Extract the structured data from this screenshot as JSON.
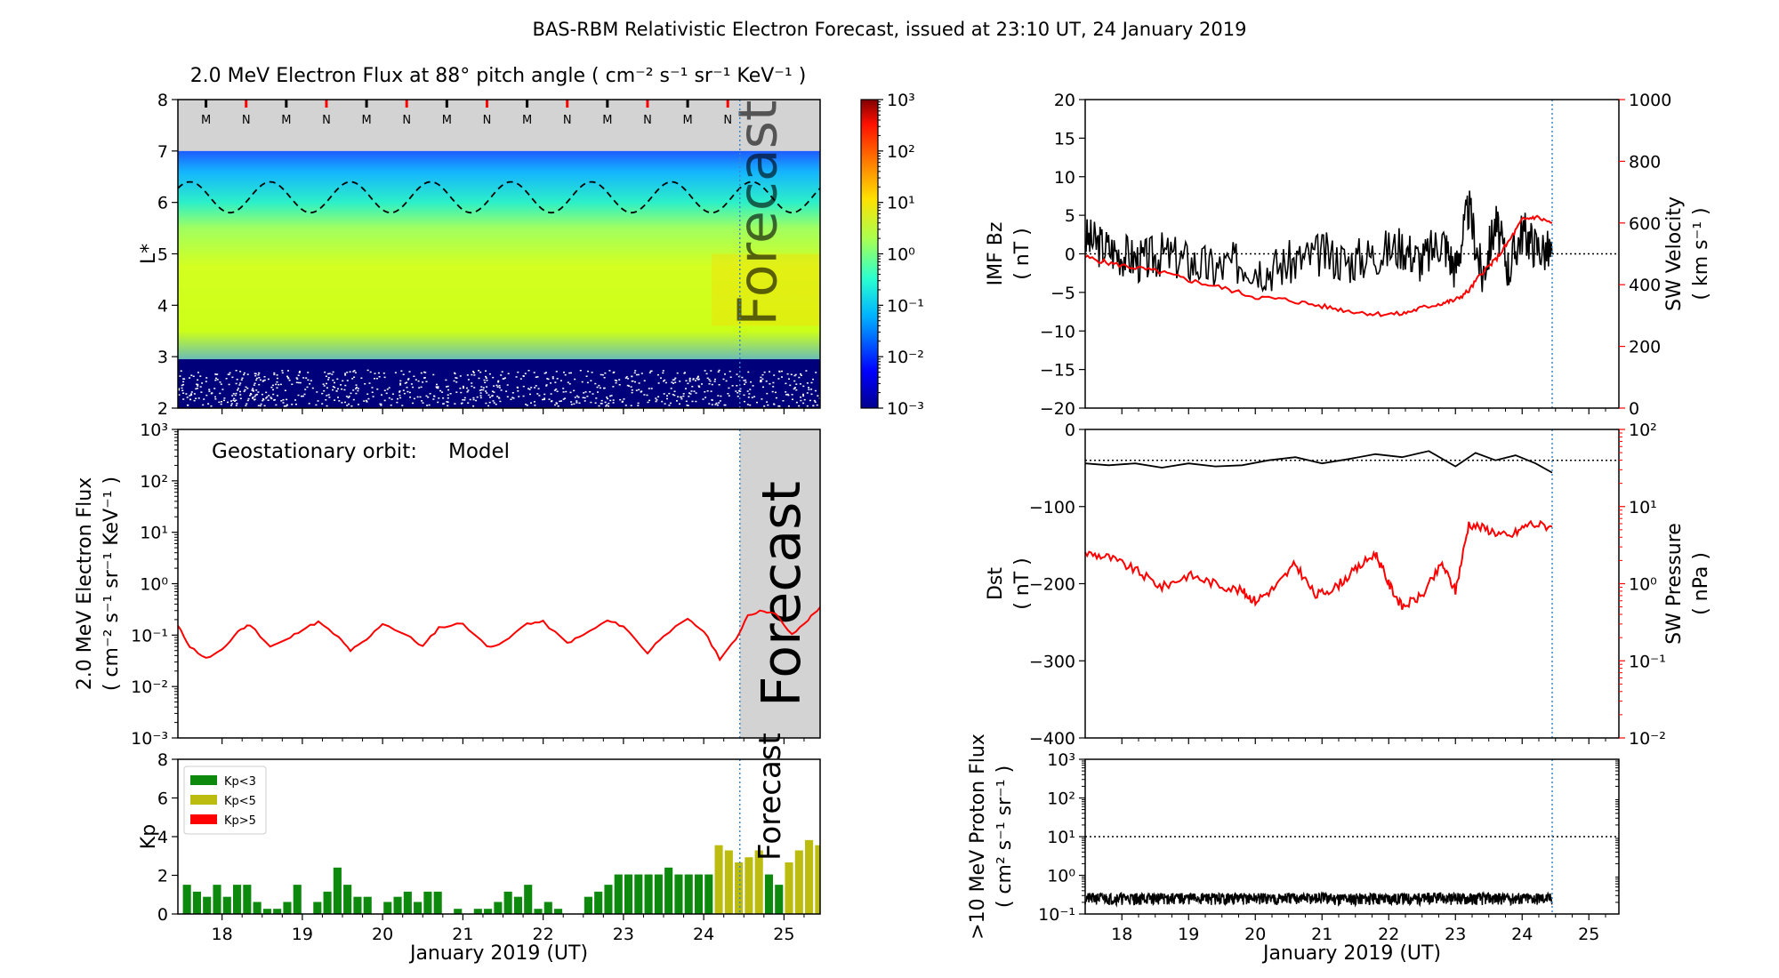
{
  "title": "BAS-RBM Relativistic Electron Forecast, issued at 23:10 UT, 24 January 2019",
  "colors": {
    "red": "#ff0000",
    "black": "#000000",
    "forecast_grey": "#d3d3d3",
    "kp_green": "#0d8a0d",
    "kp_olive": "#bcbc10",
    "kp_red": "#ff0000",
    "nowline": "#3a86c8"
  },
  "chart_data": [
    {
      "id": "lstar_flux",
      "type": "heatmap",
      "title": "2.0 MeV Electron Flux at 88° pitch angle ( cm⁻² s⁻¹ sr⁻¹ KeV⁻¹ )",
      "ylabel": "L*",
      "ylim": [
        2,
        8
      ],
      "yticks": [
        "2",
        "3",
        "4",
        "5",
        "6",
        "7",
        "8"
      ],
      "xlim": [
        17.45,
        25.45
      ],
      "colorbar": {
        "scale": "log",
        "range": [
          0.001,
          1000
        ],
        "ticks": [
          "10⁻³",
          "10⁻²",
          "10⁻¹",
          "10⁰",
          "10¹",
          "10²",
          "10³"
        ]
      },
      "mn_markers": [
        "M",
        "N",
        "M",
        "N",
        "M",
        "N",
        "M",
        "N",
        "M",
        "N",
        "M",
        "N",
        "M",
        "N"
      ],
      "mn_x": [
        17.8,
        18.3,
        18.8,
        19.3,
        19.8,
        20.3,
        20.8,
        21.3,
        21.8,
        22.3,
        22.8,
        23.3,
        23.8,
        24.3
      ],
      "geo_L_range": [
        5.8,
        6.4
      ],
      "forecast_label": "Forecast"
    },
    {
      "id": "geo_flux",
      "type": "line",
      "ylabel": "2.0 MeV Electron Flux ( cm⁻² s⁻¹ sr⁻¹ KeV⁻¹ )",
      "ylabel_line1": "2.0 MeV Electron Flux",
      "ylabel_line2": "( cm⁻² s⁻¹ sr⁻¹ KeV⁻¹ )",
      "yscale": "log",
      "ylim": [
        0.001,
        1000
      ],
      "yticks": [
        "10⁻³",
        "10⁻²",
        "10⁻¹",
        "10⁰",
        "10¹",
        "10²",
        "10³"
      ],
      "xlim": [
        17.45,
        25.45
      ],
      "annotation": "Geostationary orbit:",
      "series": [
        {
          "name": "Model",
          "color": "#ff0000",
          "x": [
            17.45,
            17.6,
            17.8,
            18.0,
            18.2,
            18.35,
            18.6,
            18.8,
            19.0,
            19.2,
            19.45,
            19.6,
            19.8,
            20.0,
            20.3,
            20.5,
            20.7,
            21.0,
            21.3,
            21.5,
            21.8,
            22.0,
            22.3,
            22.5,
            22.8,
            23.0,
            23.3,
            23.5,
            23.8,
            24.0,
            24.2,
            24.4,
            24.55,
            24.75,
            24.9,
            25.1,
            25.3,
            25.45
          ],
          "y": [
            0.15,
            0.06,
            0.035,
            0.05,
            0.12,
            0.16,
            0.06,
            0.08,
            0.13,
            0.18,
            0.09,
            0.05,
            0.08,
            0.17,
            0.1,
            0.06,
            0.14,
            0.17,
            0.06,
            0.07,
            0.17,
            0.18,
            0.07,
            0.1,
            0.19,
            0.15,
            0.045,
            0.1,
            0.2,
            0.12,
            0.035,
            0.08,
            0.25,
            0.3,
            0.25,
            0.1,
            0.2,
            0.35
          ]
        }
      ],
      "forecast_label": "Forecast"
    },
    {
      "id": "kp",
      "type": "bar",
      "ylabel": "Kp",
      "ylim": [
        0,
        9
      ],
      "yticks": [
        "0",
        "2",
        "4",
        "6",
        "8"
      ],
      "xlabel": "January 2019 (UT)",
      "xticks": [
        "18",
        "19",
        "20",
        "21",
        "22",
        "23",
        "24",
        "25"
      ],
      "xlim": [
        17.45,
        25.45
      ],
      "legend": [
        {
          "label": "Kp<3",
          "color": "#0d8a0d"
        },
        {
          "label": "Kp<5",
          "color": "#bcbc10"
        },
        {
          "label": "Kp>5",
          "color": "#ff0000"
        }
      ],
      "legend_position": "upper-left",
      "bar_start": 17.5,
      "bar_width_days": 0.125,
      "values": [
        1.7,
        1.3,
        1.0,
        1.7,
        1.0,
        1.7,
        1.7,
        0.7,
        0.3,
        0.3,
        0.7,
        1.7,
        0.0,
        0.7,
        1.3,
        2.7,
        1.7,
        1.0,
        1.0,
        0.0,
        0.7,
        1.0,
        1.3,
        0.7,
        1.3,
        1.3,
        0.0,
        0.3,
        0.0,
        0.3,
        0.3,
        0.7,
        1.3,
        1.0,
        1.7,
        0.3,
        0.7,
        0.3,
        0.0,
        0.0,
        1.0,
        1.3,
        1.7,
        2.3,
        2.3,
        2.3,
        2.3,
        2.3,
        2.7,
        2.3,
        2.3,
        2.3,
        2.3,
        4.0,
        3.7,
        3.0,
        3.3,
        3.7,
        2.3,
        1.7,
        3.0,
        3.7,
        4.3,
        4.0,
        3.0,
        3.0,
        3.0,
        2.7,
        3.0,
        3.0,
        4.0,
        4.0
      ],
      "forecast_label": "Forecast"
    },
    {
      "id": "imf_sw",
      "type": "line",
      "ylabel": "IMF Bz ( nT )",
      "ylabel_line1": "IMF Bz",
      "ylabel_line2": "( nT )",
      "ylim": [
        -20,
        20
      ],
      "yticks": [
        "−20",
        "−15",
        "−10",
        "−5",
        "0",
        "5",
        "10",
        "15",
        "20"
      ],
      "y2label": "SW Velocity ( km s⁻¹ )",
      "y2label_line1": "SW Velocity",
      "y2label_line2": "( km s⁻¹ )",
      "y2lim": [
        0,
        1000
      ],
      "y2ticks": [
        "0",
        "200",
        "400",
        "600",
        "800",
        "1000"
      ],
      "xlim": [
        17.45,
        25.45
      ],
      "series": [
        {
          "name": "IMF Bz",
          "color": "#000000",
          "x": [
            17.45,
            17.7,
            18.0,
            18.3,
            18.6,
            19.0,
            19.4,
            19.8,
            20.2,
            20.6,
            21.0,
            21.4,
            21.8,
            22.2,
            22.5,
            22.8,
            23.0,
            23.2,
            23.4,
            23.6,
            23.8,
            24.0,
            24.2,
            24.45
          ],
          "y": [
            2,
            1,
            0,
            -1,
            0,
            -1,
            -2,
            -1,
            -2,
            -1,
            0,
            -1,
            0,
            1,
            -1,
            2,
            -2,
            6,
            -3,
            4,
            -2,
            3,
            1,
            0
          ]
        },
        {
          "name": "SW Velocity",
          "color": "#ff0000",
          "axis": "right",
          "x": [
            17.45,
            17.8,
            18.2,
            18.6,
            19.0,
            19.5,
            20.0,
            20.5,
            21.0,
            21.4,
            21.8,
            22.2,
            22.5,
            22.8,
            23.0,
            23.2,
            23.4,
            23.6,
            23.8,
            24.0,
            24.2,
            24.45
          ],
          "y": [
            490,
            470,
            455,
            440,
            415,
            390,
            360,
            350,
            330,
            315,
            305,
            305,
            325,
            340,
            350,
            380,
            440,
            480,
            540,
            610,
            620,
            600
          ]
        }
      ],
      "zero_line": 0
    },
    {
      "id": "dst_pressure",
      "type": "line",
      "ylabel": "Dst ( nT )",
      "ylabel_line1": "Dst",
      "ylabel_line2": "( nT )",
      "ylim": [
        -450,
        50
      ],
      "yticks": [
        "−400",
        "−300",
        "−200",
        "−100",
        "0"
      ],
      "y2label": "SW Pressure ( nPa )",
      "y2label_line1": "SW Pressure",
      "y2label_line2": "( nPa )",
      "y2scale": "log",
      "y2lim": [
        0.01,
        100
      ],
      "y2ticks": [
        "10⁻²",
        "10⁻¹",
        "10⁰",
        "10¹",
        "10²"
      ],
      "xlim": [
        17.45,
        25.45
      ],
      "series": [
        {
          "name": "Dst",
          "color": "#000000",
          "x": [
            17.45,
            17.8,
            18.2,
            18.6,
            19.0,
            19.4,
            19.8,
            20.2,
            20.6,
            21.0,
            21.4,
            21.8,
            22.2,
            22.6,
            23.0,
            23.3,
            23.6,
            23.9,
            24.2,
            24.45
          ],
          "y": [
            -5,
            -8,
            -5,
            -12,
            -5,
            -10,
            -8,
            0,
            5,
            -5,
            2,
            10,
            5,
            15,
            -10,
            12,
            0,
            8,
            -5,
            -20
          ]
        },
        {
          "name": "SW Pressure",
          "color": "#ff0000",
          "axis": "right",
          "x": [
            17.45,
            17.8,
            18.2,
            18.6,
            19.0,
            19.4,
            19.8,
            20.0,
            20.3,
            20.6,
            20.9,
            21.2,
            21.5,
            21.8,
            22.0,
            22.2,
            22.5,
            22.8,
            23.0,
            23.2,
            23.5,
            23.8,
            24.1,
            24.45
          ],
          "y": [
            2.5,
            2.2,
            1.5,
            0.9,
            1.3,
            1.0,
            0.8,
            0.6,
            0.9,
            1.8,
            0.7,
            0.9,
            1.5,
            2.5,
            1.0,
            0.5,
            0.7,
            1.8,
            0.8,
            6.0,
            5.0,
            4.0,
            6.0,
            5.5
          ]
        }
      ],
      "zero_line": 0
    },
    {
      "id": "proton_flux",
      "type": "line",
      "ylabel": ">10 MeV Proton Flux ( cm² s⁻¹ sr⁻¹ )",
      "ylabel_line1": ">10 MeV Proton Flux",
      "ylabel_line2": "( cm² s⁻¹ sr⁻¹ )",
      "yscale": "log",
      "ylim": [
        0.1,
        1000
      ],
      "yticks": [
        "10⁻¹",
        "10⁰",
        "10¹",
        "10²",
        "10³"
      ],
      "xlabel": "January 2019 (UT)",
      "xticks": [
        "18",
        "19",
        "20",
        "21",
        "22",
        "23",
        "24",
        "25"
      ],
      "xlim": [
        17.45,
        25.45
      ],
      "threshold": 10,
      "series": [
        {
          "name": ">10 MeV proton flux",
          "color": "#000000",
          "x": [
            17.45,
            24.45
          ],
          "y": [
            0.2,
            0.2
          ]
        }
      ]
    }
  ],
  "now_x": 24.45,
  "forecast_end_x": 25.45
}
